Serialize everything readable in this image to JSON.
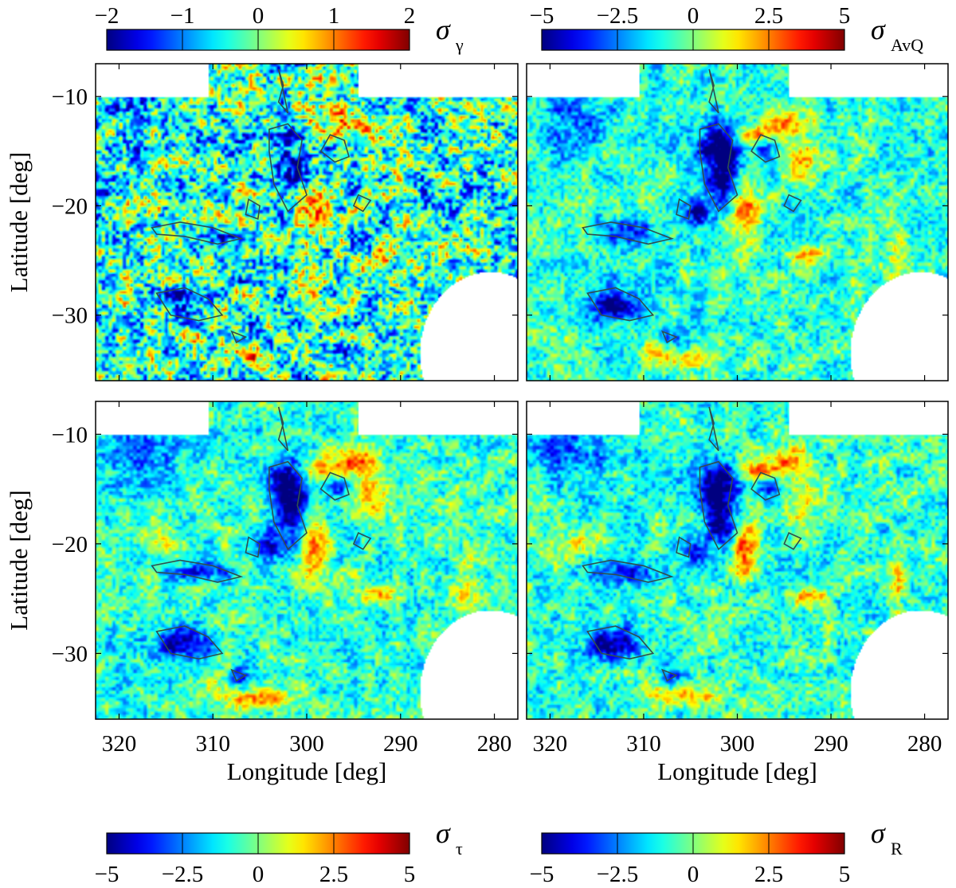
{
  "chart_data": {
    "type": "heatmap",
    "description_axes": {
      "xlabel": "Longitude [deg]",
      "ylabel": "Latitude [deg]",
      "xlim": [
        322.5,
        277.5
      ],
      "ylim": [
        -36,
        -7
      ],
      "xticks": [
        320,
        310,
        300,
        290,
        280
      ],
      "yticks": [
        -10,
        -20,
        -30
      ]
    },
    "panels": [
      {
        "id": "sigma_gamma",
        "label": "σ",
        "sub": "γ",
        "cmin": -2,
        "cmax": 2,
        "colorbar_ticks": [
          "−2",
          "−1",
          "0",
          "1",
          "2"
        ],
        "colorbar_values": [
          -2,
          -1,
          0,
          1,
          2
        ],
        "noise": 0.9,
        "signal": 0.55
      },
      {
        "id": "sigma_AvQ",
        "label": "σ",
        "sub": "AvQ",
        "cmin": -5,
        "cmax": 5,
        "colorbar_ticks": [
          "−5",
          "−2.5",
          "0",
          "2.5",
          "5"
        ],
        "colorbar_values": [
          -5,
          -2.5,
          0,
          2.5,
          5
        ],
        "noise": 0.45,
        "signal": 1.0
      },
      {
        "id": "sigma_tau",
        "label": "σ",
        "sub": "τ",
        "cmin": -5,
        "cmax": 5,
        "colorbar_ticks": [
          "−5",
          "−2.5",
          "0",
          "2.5",
          "5"
        ],
        "colorbar_values": [
          -5,
          -2.5,
          0,
          2.5,
          5
        ],
        "noise": 0.45,
        "signal": 1.0
      },
      {
        "id": "sigma_R",
        "label": "σ",
        "sub": "R",
        "cmin": -5,
        "cmax": 5,
        "colorbar_ticks": [
          "−5",
          "−2.5",
          "0",
          "2.5",
          "5"
        ],
        "colorbar_values": [
          -5,
          -2.5,
          0,
          2.5,
          5
        ],
        "noise": 0.45,
        "signal": 1.0
      }
    ],
    "masked_regions": [
      {
        "type": "rect",
        "lon": [
          322.5,
          310.5
        ],
        "lat": [
          -10,
          -7
        ]
      },
      {
        "type": "rect",
        "lon": [
          294.5,
          277.5
        ],
        "lat": [
          -10,
          -7
        ]
      },
      {
        "type": "circle",
        "lon": 280.5,
        "lat": -33.5,
        "r_deg": 7.5
      }
    ],
    "colormap": "jet",
    "contour_color": "#2f4f4f"
  }
}
